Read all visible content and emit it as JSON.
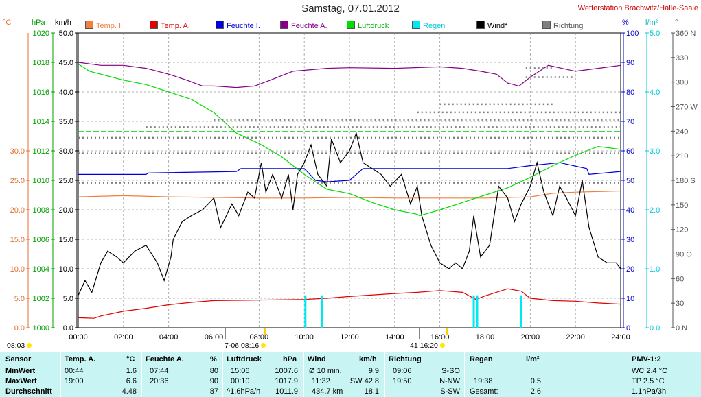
{
  "header": {
    "title": "Samstag, 07.01.2012",
    "station": "Wetterstation Brachwitz/Halle-Saale"
  },
  "legend": [
    {
      "label": "Temp. I.",
      "color": "#f08040"
    },
    {
      "label": "Temp. A.",
      "color": "#e00000"
    },
    {
      "label": "Feuchte I.",
      "color": "#0000dd"
    },
    {
      "label": "Feuchte A.",
      "color": "#880088"
    },
    {
      "label": "Luftdruck",
      "color": "#00dd00"
    },
    {
      "label": "Regen",
      "color": "#00e8f0"
    },
    {
      "label": "Wind*",
      "color": "#000000"
    },
    {
      "label": "Richtung",
      "color": "#808080"
    }
  ],
  "axis_headers": {
    "temp": "°C",
    "pressure": "hPa",
    "wind": "km/h",
    "humidity": "%",
    "rain": "l/m²",
    "direction": "°"
  },
  "below_axis": {
    "sunrise": "08:03",
    "sunset_marker": "16:20",
    "moonrise_marker": "08:16",
    "marker_a": "7-06",
    "marker_b": "41"
  },
  "summary": {
    "headers": {
      "sensor": "Sensor",
      "temp": "Temp. A.",
      "temp_unit": "°C",
      "hum": "Feuchte A.",
      "hum_unit": "%",
      "press": "Luftdruck",
      "press_unit": "hPa",
      "wind": "Wind",
      "wind_unit": "km/h",
      "dir": "Richtung",
      "rain": "Regen",
      "rain_unit": "l/m²",
      "pmv": "PMV-1:2"
    },
    "rows": [
      {
        "label": "MinWert",
        "temp_time": "00:44",
        "temp_val": "1.6",
        "hum_time": "07:44",
        "hum_val": "80",
        "press_time": "15:06",
        "press_val": "1007.6",
        "wind_a": "Ø 10 min.",
        "wind_b": "",
        "wind_val": "9.9",
        "dir_time": "09:06",
        "dir_val": "S-SO",
        "rain_time": "",
        "rain_val": "",
        "pmv": "WC 2.4 °C"
      },
      {
        "label": "MaxWert",
        "temp_time": "19:00",
        "temp_val": "6.6",
        "hum_time": "20:36",
        "hum_val": "90",
        "press_time": "00:10",
        "press_val": "1017.9",
        "wind_a": "11:32",
        "wind_b": "SW 42.8",
        "wind_val": "",
        "dir_time": "19:50",
        "dir_val": "N-NW",
        "rain_time": "19:38",
        "rain_val": "0.5",
        "pmv": "TP 2.5 °C"
      },
      {
        "label": "Durchschnitt",
        "temp_time": "",
        "temp_val": "4.48",
        "hum_time": "",
        "hum_val": "87",
        "press_time": "^1.6hPa/h",
        "press_val": "1011.9",
        "wind_a": "434.7 km",
        "wind_b": "",
        "wind_val": "18.1",
        "dir_time": "",
        "dir_val": "S-SW",
        "rain_time": "Gesamt:",
        "rain_val": "2.6",
        "pmv": "1.1hPa/3h"
      }
    ]
  },
  "chart_data": {
    "type": "line",
    "x": [
      "00:00",
      "02:00",
      "04:00",
      "06:00",
      "08:00",
      "10:00",
      "12:00",
      "14:00",
      "16:00",
      "18:00",
      "20:00",
      "22:00",
      "24:00"
    ],
    "axes": {
      "temp": {
        "label": "°C",
        "ticks": [
          "0.0",
          "5.0",
          "10.0",
          "15.0",
          "20.0",
          "25.0",
          "30.0"
        ],
        "color": "#e07030"
      },
      "pressure": {
        "label": "hPa",
        "ticks": [
          "1000",
          "1002",
          "1004",
          "1006",
          "1008",
          "1010",
          "1012",
          "1014",
          "1016",
          "1018",
          "1020"
        ],
        "color": "#00a000"
      },
      "wind": {
        "label": "km/h",
        "ticks": [
          "0.0",
          "5.0",
          "10.0",
          "15.0",
          "20.0",
          "25.0",
          "30.0",
          "35.0",
          "40.0",
          "45.0",
          "50.0"
        ],
        "color": "#000000"
      },
      "humidity": {
        "label": "%",
        "ticks": [
          "0",
          "10",
          "20",
          "30",
          "40",
          "50",
          "60",
          "70",
          "80",
          "90",
          "100"
        ],
        "color": "#0000cc"
      },
      "rain": {
        "label": "l/m²",
        "ticks": [
          "0.0",
          "1.0",
          "2.0",
          "3.0",
          "4.0",
          "5.0"
        ],
        "color": "#00c8d8"
      },
      "direction": {
        "label": "°",
        "ticks": [
          "0 N",
          "30",
          "60",
          "90 O",
          "120",
          "150",
          "180 S",
          "210",
          "240",
          "270 W",
          "300",
          "330",
          "360 N"
        ],
        "color": "#555555"
      }
    },
    "ylim_wind": [
      0,
      50
    ],
    "grid": true,
    "series": [
      {
        "name": "Temp. I.",
        "axis": "temp",
        "color": "#f08040",
        "points": [
          [
            0,
            22.2
          ],
          [
            2,
            22.4
          ],
          [
            4,
            22.2
          ],
          [
            6,
            22.1
          ],
          [
            8,
            22.0
          ],
          [
            10,
            22.0
          ],
          [
            12,
            22.1
          ],
          [
            14,
            22.0
          ],
          [
            16,
            22.0
          ],
          [
            18,
            22.0
          ],
          [
            20,
            22.2
          ],
          [
            21,
            22.8
          ],
          [
            22,
            23.0
          ],
          [
            24,
            23.2
          ]
        ]
      },
      {
        "name": "Temp. A.",
        "axis": "temp",
        "color": "#e00000",
        "points": [
          [
            0,
            1.7
          ],
          [
            0.7,
            1.6
          ],
          [
            1,
            2.0
          ],
          [
            2,
            2.8
          ],
          [
            3,
            3.3
          ],
          [
            4,
            3.9
          ],
          [
            5,
            4.3
          ],
          [
            6,
            4.6
          ],
          [
            8,
            4.7
          ],
          [
            10,
            4.8
          ],
          [
            11,
            5.0
          ],
          [
            12,
            5.3
          ],
          [
            14,
            5.8
          ],
          [
            15,
            6.0
          ],
          [
            16,
            6.3
          ],
          [
            17,
            6.0
          ],
          [
            17.6,
            4.8
          ],
          [
            18,
            5.4
          ],
          [
            19,
            6.6
          ],
          [
            19.6,
            6.2
          ],
          [
            20,
            5.0
          ],
          [
            21,
            4.6
          ],
          [
            22,
            4.5
          ],
          [
            23,
            4.2
          ],
          [
            24,
            4.0
          ]
        ]
      },
      {
        "name": "Feuchte I.",
        "axis": "humidity",
        "color": "#0000dd",
        "points": [
          [
            0,
            52
          ],
          [
            3,
            52
          ],
          [
            3.1,
            52.5
          ],
          [
            7,
            53
          ],
          [
            7.2,
            54
          ],
          [
            8,
            54
          ],
          [
            10,
            54
          ],
          [
            10.5,
            50
          ],
          [
            11,
            49.5
          ],
          [
            12,
            50
          ],
          [
            12.6,
            54
          ],
          [
            14,
            54
          ],
          [
            16,
            54
          ],
          [
            19,
            54
          ],
          [
            20,
            55
          ],
          [
            21.3,
            56
          ],
          [
            22.5,
            54
          ],
          [
            22.6,
            52
          ],
          [
            24,
            53
          ]
        ]
      },
      {
        "name": "Feuchte A.",
        "axis": "humidity",
        "color": "#880088",
        "points": [
          [
            0,
            90
          ],
          [
            1,
            89
          ],
          [
            2,
            89
          ],
          [
            3,
            88
          ],
          [
            4,
            86
          ],
          [
            4.8,
            84
          ],
          [
            5.5,
            82
          ],
          [
            6,
            82
          ],
          [
            7,
            81.5
          ],
          [
            7.8,
            82
          ],
          [
            8.5,
            84
          ],
          [
            9.5,
            87
          ],
          [
            11,
            88
          ],
          [
            12,
            88.2
          ],
          [
            14,
            88
          ],
          [
            16,
            88.5
          ],
          [
            17,
            88
          ],
          [
            17.8,
            87
          ],
          [
            18.5,
            86
          ],
          [
            19,
            83
          ],
          [
            19.5,
            82
          ],
          [
            20,
            85
          ],
          [
            20.8,
            89
          ],
          [
            22,
            87
          ],
          [
            23,
            88
          ],
          [
            24,
            89
          ]
        ]
      },
      {
        "name": "Luftdruck",
        "axis": "pressure",
        "color": "#00dd00",
        "points": [
          [
            0,
            1017.9
          ],
          [
            0.5,
            1017.4
          ],
          [
            1,
            1017.2
          ],
          [
            2,
            1016.8
          ],
          [
            3,
            1016.5
          ],
          [
            4,
            1016.0
          ],
          [
            5,
            1015.5
          ],
          [
            6,
            1014.6
          ],
          [
            7,
            1013.2
          ],
          [
            8,
            1012.5
          ],
          [
            9,
            1011.6
          ],
          [
            10,
            1010.4
          ],
          [
            11,
            1009.4
          ],
          [
            12,
            1009.1
          ],
          [
            13,
            1008.5
          ],
          [
            14,
            1008.0
          ],
          [
            15,
            1007.7
          ],
          [
            15.1,
            1007.6
          ],
          [
            16,
            1008.0
          ],
          [
            17,
            1008.5
          ],
          [
            18,
            1009.0
          ],
          [
            19,
            1009.5
          ],
          [
            20,
            1010.2
          ],
          [
            21,
            1011.0
          ],
          [
            22,
            1011.7
          ],
          [
            23,
            1012.3
          ],
          [
            24,
            1012.1
          ]
        ]
      },
      {
        "name": "Regen",
        "axis": "rain",
        "color": "#00e8f0",
        "type": "bar",
        "points": [
          [
            10.05,
            0.55
          ],
          [
            10.8,
            0.55
          ],
          [
            17.5,
            0.55
          ],
          [
            17.65,
            0.55
          ],
          [
            19.6,
            0.55
          ]
        ]
      },
      {
        "name": "Wind*",
        "axis": "wind",
        "color": "#000000",
        "points": [
          [
            0,
            5.5
          ],
          [
            0.3,
            8
          ],
          [
            0.6,
            6
          ],
          [
            1,
            11
          ],
          [
            1.3,
            13
          ],
          [
            1.7,
            12
          ],
          [
            2,
            11
          ],
          [
            2.5,
            13
          ],
          [
            3,
            14
          ],
          [
            3.5,
            11
          ],
          [
            3.8,
            8
          ],
          [
            4.1,
            12
          ],
          [
            4.2,
            15
          ],
          [
            4.6,
            18
          ],
          [
            5,
            19
          ],
          [
            5.5,
            20
          ],
          [
            6,
            22
          ],
          [
            6.3,
            17
          ],
          [
            6.8,
            21
          ],
          [
            7.1,
            19
          ],
          [
            7.5,
            23
          ],
          [
            7.8,
            22
          ],
          [
            8.1,
            28
          ],
          [
            8.3,
            23
          ],
          [
            8.6,
            26
          ],
          [
            9,
            22
          ],
          [
            9.3,
            26
          ],
          [
            9.5,
            20
          ],
          [
            9.7,
            26
          ],
          [
            10,
            28
          ],
          [
            10.3,
            31
          ],
          [
            10.6,
            26
          ],
          [
            11,
            24
          ],
          [
            11.2,
            32
          ],
          [
            11.6,
            28
          ],
          [
            12,
            30
          ],
          [
            12.3,
            33
          ],
          [
            12.6,
            28
          ],
          [
            13,
            27
          ],
          [
            13.4,
            26
          ],
          [
            13.8,
            24
          ],
          [
            14.3,
            26
          ],
          [
            14.7,
            21
          ],
          [
            15,
            24
          ],
          [
            15.2,
            19
          ],
          [
            15.6,
            14
          ],
          [
            16,
            11
          ],
          [
            16.4,
            10
          ],
          [
            16.7,
            11
          ],
          [
            17,
            10
          ],
          [
            17.3,
            13
          ],
          [
            17.5,
            19
          ],
          [
            17.8,
            12
          ],
          [
            18.2,
            14
          ],
          [
            18.6,
            24
          ],
          [
            19,
            22
          ],
          [
            19.3,
            18
          ],
          [
            19.6,
            21
          ],
          [
            20,
            24
          ],
          [
            20.3,
            28
          ],
          [
            20.6,
            23
          ],
          [
            21,
            19
          ],
          [
            21.3,
            24
          ],
          [
            21.6,
            22
          ],
          [
            22,
            19
          ],
          [
            22.3,
            25
          ],
          [
            22.6,
            17
          ],
          [
            23,
            12
          ],
          [
            23.4,
            11
          ],
          [
            23.8,
            11
          ],
          [
            24,
            10
          ]
        ]
      },
      {
        "name": "Richtung",
        "axis": "direction",
        "color": "#808080",
        "type": "dots",
        "bands": [
          [
            0,
            24,
            177
          ],
          [
            0,
            24,
            232
          ],
          [
            0,
            24,
            213
          ],
          [
            3,
            24,
            245
          ],
          [
            6,
            24,
            254
          ],
          [
            15,
            24,
            263
          ],
          [
            16,
            21,
            273
          ],
          [
            19.8,
            22,
            306
          ],
          [
            19.8,
            21,
            317
          ]
        ]
      }
    ]
  }
}
